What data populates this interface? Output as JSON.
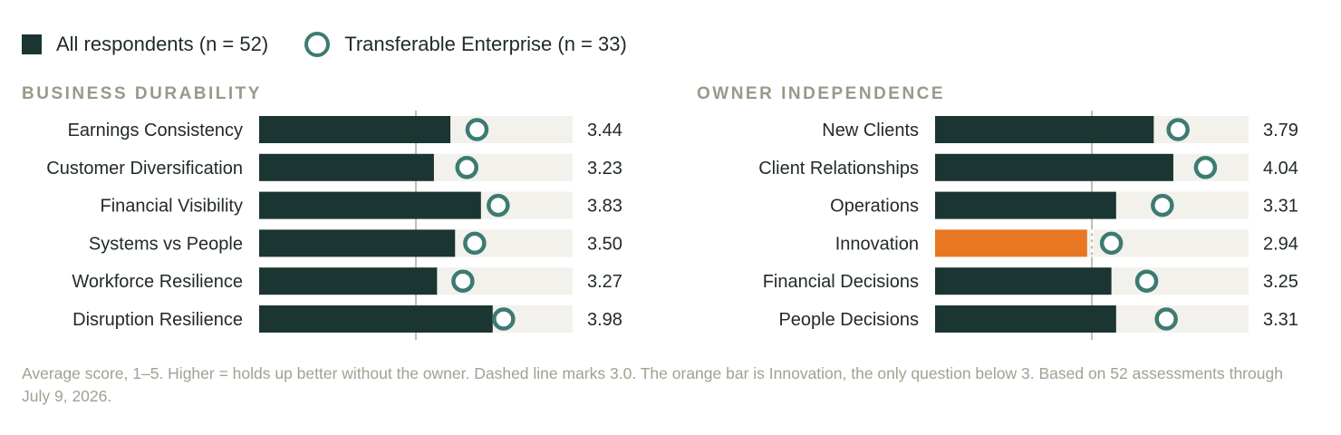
{
  "legend": {
    "all_label": "All respondents (n = 52)",
    "te_label": "Transferable Enterprise (n = 33)"
  },
  "colors": {
    "bar": "#1b3532",
    "highlight": "#e87722",
    "track": "#f2f1ec",
    "ring": "#3d7a72",
    "title": "#9b9889",
    "footnote": "#a3a092"
  },
  "chart_data": [
    {
      "type": "bar",
      "title": "BUSINESS DURABILITY",
      "xlim": [
        1,
        5
      ],
      "reference_line": 3.0,
      "categories": [
        "Earnings Consistency",
        "Customer Diversification",
        "Financial Visibility",
        "Systems vs People",
        "Workforce Resilience",
        "Disruption Resilience"
      ],
      "series": [
        {
          "name": "All respondents (n = 52)",
          "values": [
            3.44,
            3.23,
            3.83,
            3.5,
            3.27,
            3.98
          ],
          "labels": [
            "3.44",
            "3.23",
            "3.83",
            "3.50",
            "3.27",
            "3.98"
          ]
        },
        {
          "name": "Transferable Enterprise (n = 33)",
          "values": [
            3.78,
            3.65,
            4.05,
            3.75,
            3.6,
            4.12
          ]
        }
      ],
      "highlight": []
    },
    {
      "type": "bar",
      "title": "OWNER INDEPENDENCE",
      "xlim": [
        1,
        5
      ],
      "reference_line": 3.0,
      "categories": [
        "New Clients",
        "Client Relationships",
        "Operations",
        "Innovation",
        "Financial Decisions",
        "People Decisions"
      ],
      "series": [
        {
          "name": "All respondents (n = 52)",
          "values": [
            3.79,
            4.04,
            3.31,
            2.94,
            3.25,
            3.31
          ],
          "labels": [
            "3.79",
            "4.04",
            "3.31",
            "2.94",
            "3.25",
            "3.31"
          ]
        },
        {
          "name": "Transferable Enterprise (n = 33)",
          "values": [
            4.1,
            4.45,
            3.9,
            3.25,
            3.7,
            3.95
          ]
        }
      ],
      "highlight": [
        "Innovation"
      ]
    }
  ],
  "footnote": "Average score, 1–5. Higher = holds up better without the owner. Dashed line marks 3.0. The orange bar is Innovation, the only question below 3. Based on 52 assessments through July 9, 2026."
}
